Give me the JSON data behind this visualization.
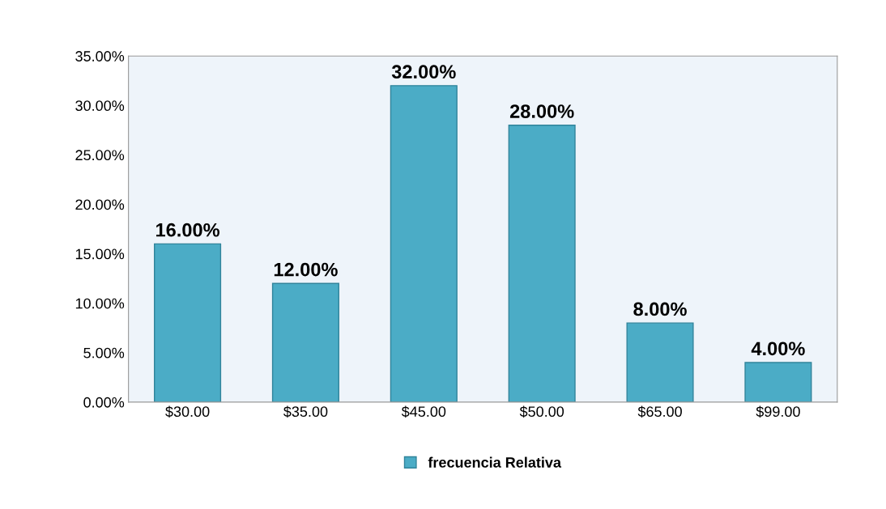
{
  "chart_data": {
    "type": "bar",
    "categories": [
      "$30.00",
      "$35.00",
      "$45.00",
      "$50.00",
      "$65.00",
      "$99.00"
    ],
    "series": [
      {
        "name": "frecuencia Relativa",
        "color": "#4bacc6",
        "values": [
          16,
          12,
          32,
          28,
          8,
          4
        ],
        "value_labels": [
          "16.00%",
          "12.00%",
          "32.00%",
          "28.00%",
          "8.00%",
          "4.00%"
        ]
      }
    ],
    "ylim": [
      0,
      35
    ],
    "yticks": [
      {
        "value": 0,
        "label": "0.00%"
      },
      {
        "value": 5,
        "label": "5.00%"
      },
      {
        "value": 10,
        "label": "10.00%"
      },
      {
        "value": 15,
        "label": "15.00%"
      },
      {
        "value": 20,
        "label": "20.00%"
      },
      {
        "value": 25,
        "label": "25.00%"
      },
      {
        "value": 30,
        "label": "30.00%"
      },
      {
        "value": 35,
        "label": "35.00%"
      }
    ],
    "grid": false,
    "legend": "bottom"
  }
}
